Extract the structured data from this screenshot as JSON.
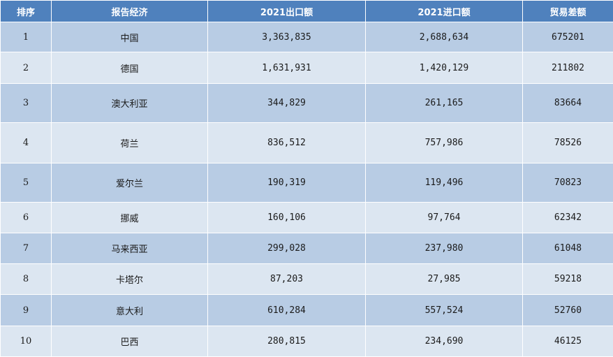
{
  "table": {
    "headers": [
      "排序",
      "报告经济",
      "2021出口额",
      "2021进口额",
      "贸易差额"
    ],
    "rows": [
      {
        "rank": "1",
        "economy": "中国",
        "export": "3,363,835",
        "import": "2,688,634",
        "balance": "675201"
      },
      {
        "rank": "2",
        "economy": "德国",
        "export": "1,631,931",
        "import": "1,420,129",
        "balance": "211802"
      },
      {
        "rank": "3",
        "economy": "澳大利亚",
        "export": "344,829",
        "import": "261,165",
        "balance": "83664"
      },
      {
        "rank": "4",
        "economy": "荷兰",
        "export": "836,512",
        "import": "757,986",
        "balance": "78526"
      },
      {
        "rank": "5",
        "economy": "爱尔兰",
        "export": "190,319",
        "import": "119,496",
        "balance": "70823"
      },
      {
        "rank": "6",
        "economy": "挪威",
        "export": "160,106",
        "import": "97,764",
        "balance": "62342"
      },
      {
        "rank": "7",
        "economy": "马来西亚",
        "export": "299,028",
        "import": "237,980",
        "balance": "61048"
      },
      {
        "rank": "8",
        "economy": "卡塔尔",
        "export": "87,203",
        "import": "27,985",
        "balance": "59218"
      },
      {
        "rank": "9",
        "economy": "意大利",
        "export": "610,284",
        "import": "557,524",
        "balance": "52760"
      },
      {
        "rank": "10",
        "economy": "巴西",
        "export": "280,815",
        "import": "234,690",
        "balance": "46125"
      }
    ]
  },
  "colors": {
    "header_bg": "#4f81bd",
    "row_dark": "#b8cce4",
    "row_light": "#dce6f1"
  }
}
